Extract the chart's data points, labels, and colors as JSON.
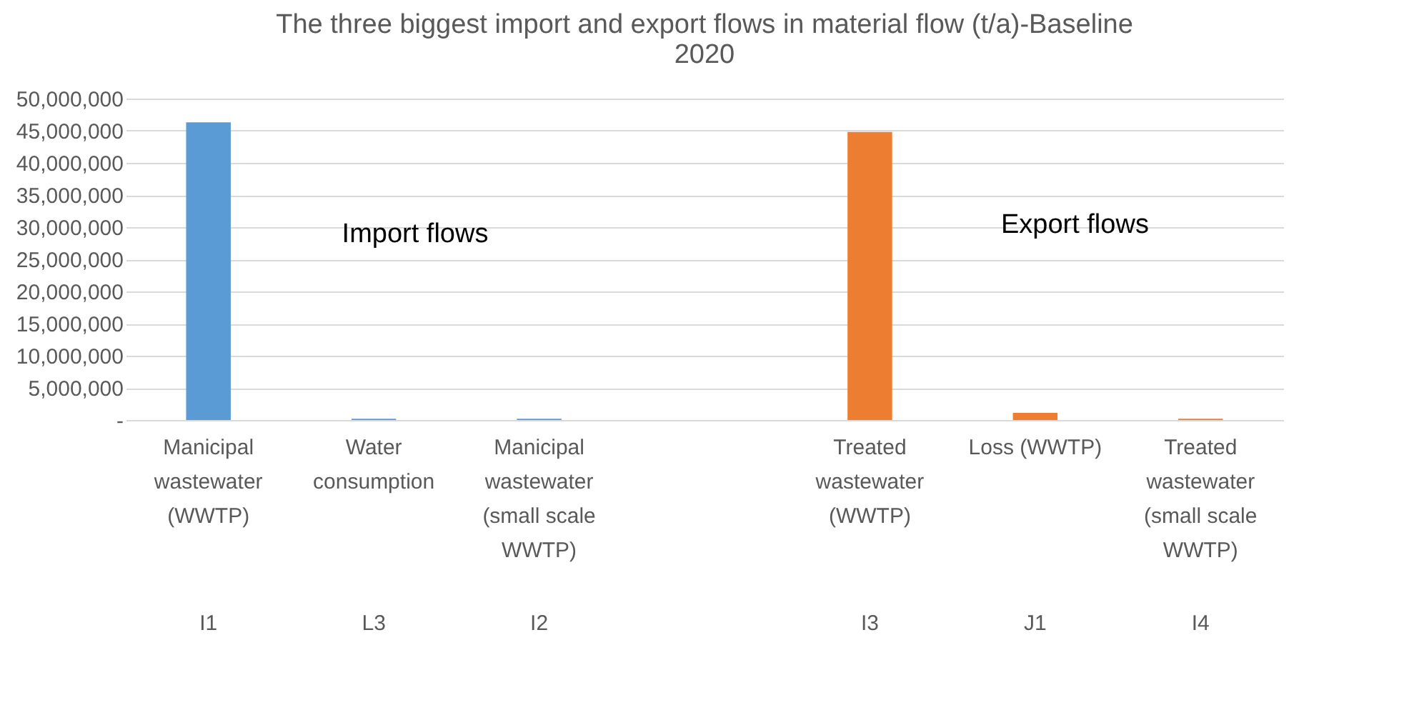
{
  "chart_data": {
    "type": "bar",
    "title": "The three biggest import and export flows in material flow (t/a)-Baseline 2020",
    "categories": [
      "Manicipal wastewater (WWTP)",
      "Water consumption",
      "Manicipal wastewater (small scale WWTP)",
      null,
      "Treated wastewater (WWTP)",
      "Loss (WWTP)",
      "Treated wastewater (small scale WWTP)"
    ],
    "values": [
      46300000,
      200000,
      200000,
      null,
      44800000,
      1100000,
      200000
    ],
    "colors": [
      "#5b9bd5",
      "#5b9bd5",
      "#5b9bd5",
      "#5b9bd5",
      "#ed7d31",
      "#ed7d31",
      "#ed7d31"
    ],
    "ylim": [
      0,
      50000000
    ],
    "yticks": [
      {
        "value": 0,
        "label": "-"
      },
      {
        "value": 5000000,
        "label": "5,000,000"
      },
      {
        "value": 10000000,
        "label": "10,000,000"
      },
      {
        "value": 15000000,
        "label": "15,000,000"
      },
      {
        "value": 20000000,
        "label": "20,000,000"
      },
      {
        "value": 25000000,
        "label": "25,000,000"
      },
      {
        "value": 30000000,
        "label": "30,000,000"
      },
      {
        "value": 35000000,
        "label": "35,000,000"
      },
      {
        "value": 40000000,
        "label": "40,000,000"
      },
      {
        "value": 45000000,
        "label": "45,000,000"
      },
      {
        "value": 50000000,
        "label": "50,000,000"
      }
    ],
    "grid": "y",
    "annotations": [
      "Import flows",
      "Export flows",
      "I1",
      "L3",
      "I2",
      "I3",
      "J1",
      "I4"
    ]
  }
}
